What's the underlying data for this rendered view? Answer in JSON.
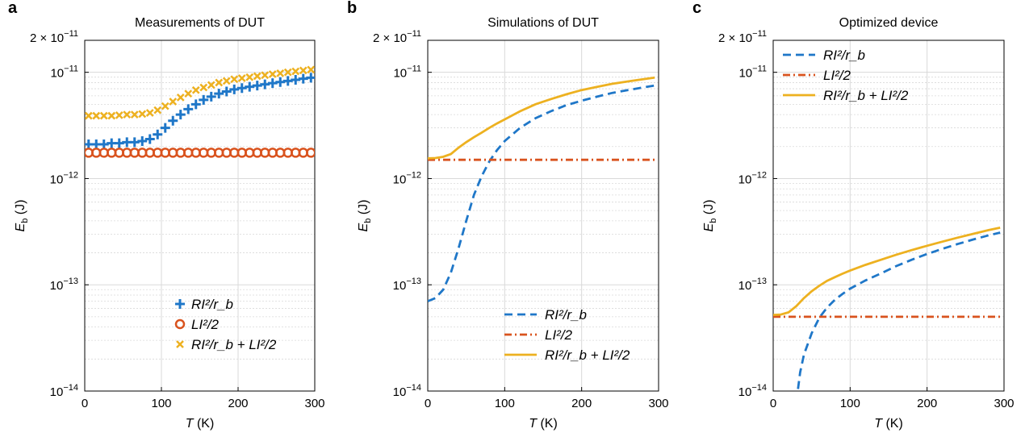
{
  "colors": {
    "blue": "#1f77c8",
    "red": "#d9531e",
    "gold": "#edb120",
    "grid": "#d9d9d9",
    "axis": "#000000"
  },
  "chart_data": [
    {
      "panel": "a",
      "type": "scatter",
      "title": "Measurements of DUT",
      "xlabel": "T (K)",
      "ylabel": "E_b (J)",
      "xlim": [
        0,
        300
      ],
      "ylim": [
        1e-14,
        2e-11
      ],
      "yscale": "log",
      "grid": true,
      "legend_position": "bottom-right",
      "xticks": [
        "0",
        "100",
        "200",
        "300"
      ],
      "yticks_top": "2 × 10^−11",
      "series": [
        {
          "name": "RI²/r_b",
          "color": "blue",
          "marker": "plus",
          "x": [
            5,
            15,
            25,
            35,
            45,
            55,
            65,
            75,
            85,
            95,
            105,
            115,
            125,
            135,
            145,
            155,
            165,
            175,
            185,
            195,
            205,
            215,
            225,
            235,
            245,
            255,
            265,
            275,
            285,
            295
          ],
          "y": [
            2.1e-12,
            2.1e-12,
            2.1e-12,
            2.15e-12,
            2.15e-12,
            2.2e-12,
            2.2e-12,
            2.25e-12,
            2.35e-12,
            2.6e-12,
            3e-12,
            3.5e-12,
            4e-12,
            4.5e-12,
            5e-12,
            5.5e-12,
            5.9e-12,
            6.3e-12,
            6.6e-12,
            6.9e-12,
            7.1e-12,
            7.3e-12,
            7.5e-12,
            7.7e-12,
            7.9e-12,
            8.1e-12,
            8.3e-12,
            8.5e-12,
            8.7e-12,
            8.9e-12
          ]
        },
        {
          "name": "LI²/2",
          "color": "red",
          "marker": "circle",
          "x": [
            5,
            15,
            25,
            35,
            45,
            55,
            65,
            75,
            85,
            95,
            105,
            115,
            125,
            135,
            145,
            155,
            165,
            175,
            185,
            195,
            205,
            215,
            225,
            235,
            245,
            255,
            265,
            275,
            285,
            295
          ],
          "y": [
            1.75e-12,
            1.75e-12,
            1.75e-12,
            1.75e-12,
            1.75e-12,
            1.75e-12,
            1.75e-12,
            1.75e-12,
            1.75e-12,
            1.75e-12,
            1.75e-12,
            1.75e-12,
            1.75e-12,
            1.75e-12,
            1.75e-12,
            1.75e-12,
            1.75e-12,
            1.75e-12,
            1.75e-12,
            1.75e-12,
            1.75e-12,
            1.75e-12,
            1.75e-12,
            1.75e-12,
            1.75e-12,
            1.75e-12,
            1.75e-12,
            1.75e-12,
            1.75e-12,
            1.75e-12
          ]
        },
        {
          "name": "RI²/r_b + LI²/2",
          "color": "gold",
          "marker": "x",
          "x": [
            5,
            15,
            25,
            35,
            45,
            55,
            65,
            75,
            85,
            95,
            105,
            115,
            125,
            135,
            145,
            155,
            165,
            175,
            185,
            195,
            205,
            215,
            225,
            235,
            245,
            255,
            265,
            275,
            285,
            295
          ],
          "y": [
            3.9e-12,
            3.9e-12,
            3.9e-12,
            3.9e-12,
            3.95e-12,
            4e-12,
            4e-12,
            4.05e-12,
            4.15e-12,
            4.4e-12,
            4.8e-12,
            5.3e-12,
            5.8e-12,
            6.3e-12,
            6.8e-12,
            7.2e-12,
            7.6e-12,
            8e-12,
            8.3e-12,
            8.6e-12,
            8.8e-12,
            9e-12,
            9.2e-12,
            9.4e-12,
            9.6e-12,
            9.8e-12,
            1e-11,
            1.02e-11,
            1.04e-11,
            1.06e-11
          ]
        }
      ]
    },
    {
      "panel": "b",
      "type": "line",
      "title": "Simulations of DUT",
      "xlabel": "T (K)",
      "ylabel": "E_b (J)",
      "xlim": [
        0,
        300
      ],
      "ylim": [
        1e-14,
        2e-11
      ],
      "yscale": "log",
      "grid": true,
      "legend_position": "bottom-right",
      "xticks": [
        "0",
        "100",
        "200",
        "300"
      ],
      "series": [
        {
          "name": "RI²/r_b",
          "color": "blue",
          "dash": "dashed",
          "x": [
            0,
            10,
            20,
            30,
            40,
            50,
            60,
            70,
            80,
            90,
            100,
            120,
            140,
            160,
            180,
            200,
            220,
            240,
            260,
            280,
            295
          ],
          "y": [
            7e-14,
            7.5e-14,
            9e-14,
            1.3e-13,
            2.2e-13,
            4e-13,
            7e-13,
            1.05e-12,
            1.45e-12,
            1.85e-12,
            2.25e-12,
            3e-12,
            3.7e-12,
            4.3e-12,
            4.9e-12,
            5.4e-12,
            5.9e-12,
            6.4e-12,
            6.8e-12,
            7.2e-12,
            7.5e-12
          ]
        },
        {
          "name": "LI²/2",
          "color": "red",
          "dash": "dash-dot",
          "x": [
            0,
            295
          ],
          "y": [
            1.5e-12,
            1.5e-12
          ]
        },
        {
          "name": "RI²/r_b + LI²/2",
          "color": "gold",
          "dash": "solid",
          "x": [
            0,
            10,
            20,
            30,
            40,
            50,
            60,
            70,
            80,
            90,
            100,
            120,
            140,
            160,
            180,
            200,
            220,
            240,
            260,
            280,
            295
          ],
          "y": [
            1.55e-12,
            1.56e-12,
            1.6e-12,
            1.7e-12,
            1.95e-12,
            2.2e-12,
            2.45e-12,
            2.7e-12,
            3e-12,
            3.3e-12,
            3.6e-12,
            4.3e-12,
            5e-12,
            5.6e-12,
            6.2e-12,
            6.8e-12,
            7.3e-12,
            7.8e-12,
            8.2e-12,
            8.6e-12,
            8.9e-12
          ]
        }
      ]
    },
    {
      "panel": "c",
      "type": "line",
      "title": "Optimized device",
      "xlabel": "T (K)",
      "ylabel": "E_b (J)",
      "xlim": [
        0,
        300
      ],
      "ylim": [
        1e-14,
        2e-11
      ],
      "yscale": "log",
      "grid": true,
      "legend_position": "top-left",
      "xticks": [
        "0",
        "100",
        "200",
        "300"
      ],
      "series": [
        {
          "name": "RI²/r_b",
          "color": "blue",
          "dash": "dashed",
          "x": [
            28,
            35,
            40,
            50,
            60,
            70,
            80,
            90,
            100,
            120,
            140,
            160,
            180,
            200,
            220,
            240,
            260,
            280,
            295
          ],
          "y": [
            6e-15,
            1.5e-14,
            2.2e-14,
            3.5e-14,
            4.9e-14,
            6.1e-14,
            7.2e-14,
            8.2e-14,
            9.2e-14,
            1.1e-13,
            1.28e-13,
            1.5e-13,
            1.72e-13,
            1.95e-13,
            2.18e-13,
            2.42e-13,
            2.67e-13,
            2.92e-13,
            3.1e-13
          ]
        },
        {
          "name": "LI²/2",
          "color": "red",
          "dash": "dash-dot",
          "x": [
            0,
            295
          ],
          "y": [
            5e-14,
            5e-14
          ]
        },
        {
          "name": "RI²/r_b + LI²/2",
          "color": "gold",
          "dash": "solid",
          "x": [
            0,
            10,
            20,
            30,
            40,
            50,
            60,
            70,
            80,
            90,
            100,
            120,
            140,
            160,
            180,
            200,
            220,
            240,
            260,
            280,
            295
          ],
          "y": [
            5.2e-14,
            5.25e-14,
            5.5e-14,
            6.3e-14,
            7.5e-14,
            8.7e-14,
            9.8e-14,
            1.09e-13,
            1.18e-13,
            1.27e-13,
            1.36e-13,
            1.54e-13,
            1.72e-13,
            1.92e-13,
            2.12e-13,
            2.33e-13,
            2.55e-13,
            2.78e-13,
            3.02e-13,
            3.27e-13,
            3.45e-13
          ]
        }
      ]
    }
  ]
}
